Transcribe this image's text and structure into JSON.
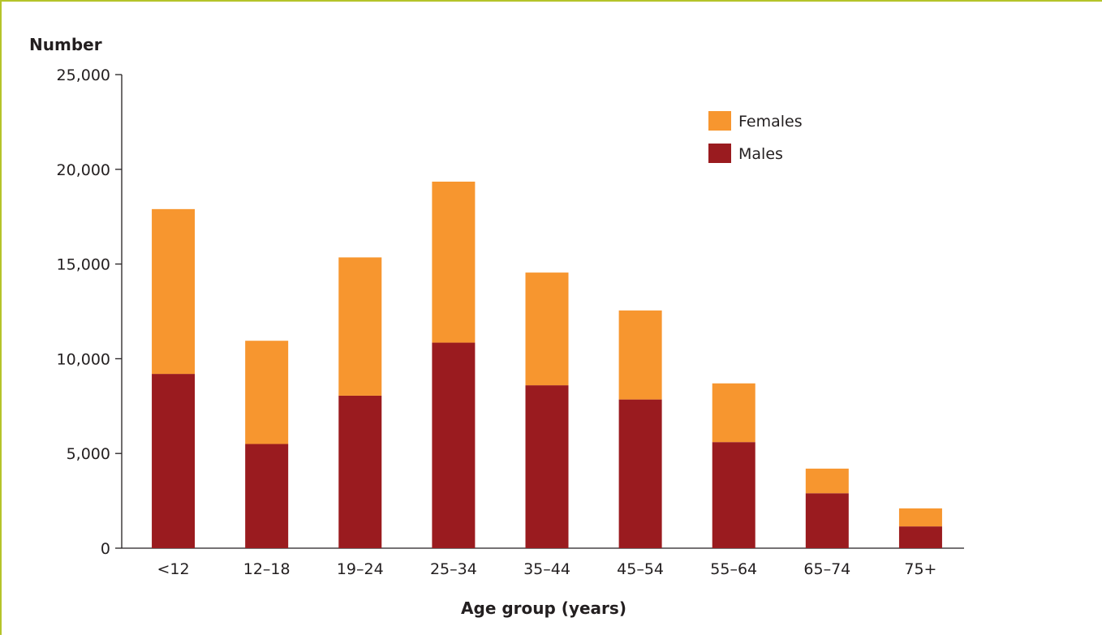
{
  "chart_data": {
    "type": "bar",
    "stacked": true,
    "ylabel": "Number",
    "xlabel": "Age group (years)",
    "categories": [
      "<12",
      "12–18",
      "19–24",
      "25–34",
      "35–44",
      "45–54",
      "55–64",
      "65–74",
      "75+"
    ],
    "series": [
      {
        "name": "Males",
        "color": "#9a1b1f",
        "values": [
          9200,
          5500,
          8050,
          10850,
          8600,
          7850,
          5600,
          2900,
          1150
        ]
      },
      {
        "name": "Females",
        "color": "#f7962f",
        "values": [
          8700,
          5450,
          7300,
          8500,
          5950,
          4700,
          3100,
          1300,
          950
        ]
      }
    ],
    "ylim": [
      0,
      25000
    ],
    "yticks": [
      0,
      5000,
      10000,
      15000,
      20000,
      25000
    ],
    "ytick_labels": [
      "0",
      "5,000",
      "10,000",
      "15,000",
      "20,000",
      "25,000"
    ],
    "legend": {
      "placement": "top-right",
      "order": [
        "Females",
        "Males"
      ]
    },
    "grid": false,
    "frame_color": "#b5c42a"
  }
}
